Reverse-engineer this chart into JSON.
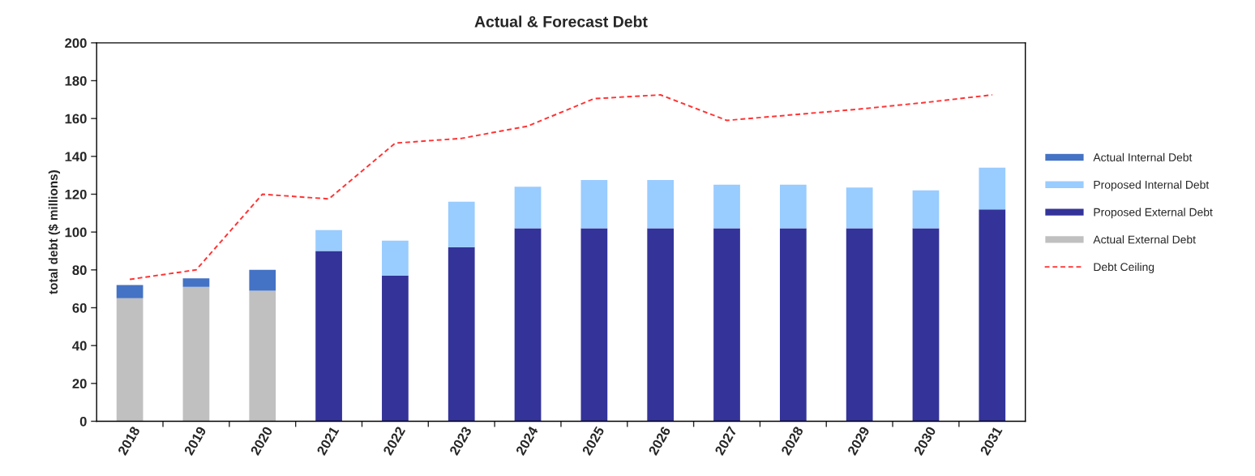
{
  "chart_data": {
    "type": "bar",
    "title": "Actual & Forecast Debt",
    "ylabel": "total debt ($ millions)",
    "categories": [
      "2018",
      "2019",
      "2020",
      "2021",
      "2022",
      "2023",
      "2024",
      "2025",
      "2026",
      "2027",
      "2028",
      "2029",
      "2030",
      "2031"
    ],
    "stacked": true,
    "series": [
      {
        "name": "Actual External Debt",
        "color": "#c0c0c0",
        "values": [
          65,
          71,
          69,
          null,
          null,
          null,
          null,
          null,
          null,
          null,
          null,
          null,
          null,
          null
        ]
      },
      {
        "name": "Proposed External Debt",
        "color": "#333399",
        "values": [
          null,
          null,
          null,
          90,
          77,
          92,
          102,
          102,
          102,
          102,
          102,
          102,
          102,
          112
        ]
      },
      {
        "name": "Proposed Internal Debt",
        "color": "#99ccff",
        "values": [
          null,
          null,
          null,
          11,
          18.5,
          24,
          22,
          25.5,
          25.5,
          23,
          23,
          21.5,
          20,
          22
        ]
      },
      {
        "name": "Actual Internal Debt",
        "color": "#4472c4",
        "values": [
          7,
          4.5,
          11,
          null,
          null,
          null,
          null,
          null,
          null,
          null,
          null,
          null,
          null,
          null
        ]
      },
      {
        "name": "Debt Ceiling",
        "type": "line",
        "color": "#ff3333",
        "line_style": "dashed",
        "values": [
          75,
          80,
          120,
          117.5,
          147,
          149.5,
          156,
          170.5,
          172.5,
          159,
          162,
          165,
          168.5,
          172.5
        ]
      }
    ],
    "ylim": [
      0,
      200
    ],
    "yticks": [
      0,
      20,
      40,
      60,
      80,
      100,
      120,
      140,
      160,
      180,
      200
    ],
    "grid": false,
    "legend": "right"
  }
}
